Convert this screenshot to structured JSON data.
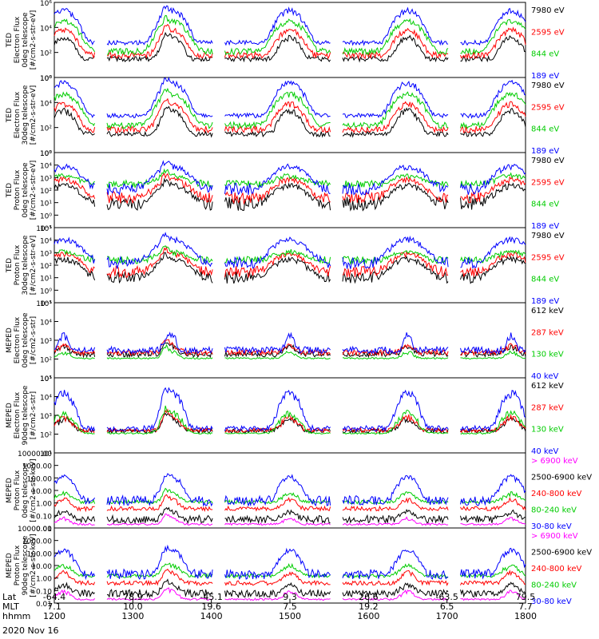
{
  "chart_data": [
    {
      "type": "line",
      "instrument": "TED",
      "ylabel": [
        "TED",
        "Electron Flux",
        "0deg telescope",
        "[#/cm2-s-str-eV]"
      ],
      "scale": "log",
      "ylim": [
        1,
        1000000
      ],
      "ticks": [
        "10⁰",
        "10²",
        "10⁴",
        "10⁶"
      ],
      "legend": [
        {
          "label": "7980 eV",
          "color": "#000000"
        },
        {
          "label": "2595 eV",
          "color": "#ff0000"
        },
        {
          "label": "844 eV",
          "color": "#00cc00"
        },
        {
          "label": "189 eV",
          "color": "#0000ff"
        }
      ],
      "series": [
        {
          "name": "7980 eV",
          "color": "#000000",
          "base": 30,
          "noise": 1.6,
          "peak": 2000,
          "peakWidth": 0.12
        },
        {
          "name": "2595 eV",
          "color": "#ff0000",
          "base": 60,
          "noise": 1.8,
          "peak": 8000,
          "peakWidth": 0.14
        },
        {
          "name": "844 eV",
          "color": "#00cc00",
          "base": 120,
          "noise": 1.8,
          "peak": 40000,
          "peakWidth": 0.16
        },
        {
          "name": "189 eV",
          "color": "#0000ff",
          "base": 600,
          "noise": 1.5,
          "peak": 300000,
          "peakWidth": 0.14
        }
      ]
    },
    {
      "type": "line",
      "instrument": "TED",
      "ylabel": [
        "TED",
        "Electron Flux",
        "30deg telescope",
        "[#/cm2-s-str-eV]"
      ],
      "scale": "log",
      "ylim": [
        1,
        1000000
      ],
      "ticks": [
        "10⁰",
        "10²",
        "10⁴",
        "10⁶"
      ],
      "legend": [
        {
          "label": "7980 eV",
          "color": "#000000"
        },
        {
          "label": "2595 eV",
          "color": "#ff0000"
        },
        {
          "label": "844 eV",
          "color": "#00cc00"
        },
        {
          "label": "189 eV",
          "color": "#0000ff"
        }
      ],
      "series": [
        {
          "name": "7980 eV",
          "color": "#000000",
          "base": 30,
          "noise": 1.6,
          "peak": 3000,
          "peakWidth": 0.12
        },
        {
          "name": "2595 eV",
          "color": "#ff0000",
          "base": 70,
          "noise": 1.8,
          "peak": 10000,
          "peakWidth": 0.14
        },
        {
          "name": "844 eV",
          "color": "#00cc00",
          "base": 150,
          "noise": 1.8,
          "peak": 60000,
          "peakWidth": 0.16
        },
        {
          "name": "189 eV",
          "color": "#0000ff",
          "base": 900,
          "noise": 1.5,
          "peak": 500000,
          "peakWidth": 0.14
        }
      ]
    },
    {
      "type": "line",
      "instrument": "TED",
      "ylabel": [
        "TED",
        "Proton Flux",
        "0deg telescope",
        "[#/cm2-s-str-eV]"
      ],
      "scale": "log",
      "ylim": [
        0.1,
        100000
      ],
      "ticks": [
        "10⁻¹",
        "10⁰",
        "10¹",
        "10²",
        "10³",
        "10⁴",
        "10⁵"
      ],
      "legend": [
        {
          "label": "7980 eV",
          "color": "#000000"
        },
        {
          "label": "2595 eV",
          "color": "#ff0000"
        },
        {
          "label": "844 eV",
          "color": "#00cc00"
        },
        {
          "label": "189 eV",
          "color": "#0000ff"
        }
      ],
      "series": [
        {
          "name": "7980 eV",
          "color": "#000000",
          "base": 8,
          "noise": 3.5,
          "peak": 300,
          "peakWidth": 0.2
        },
        {
          "name": "2595 eV",
          "color": "#ff0000",
          "base": 25,
          "noise": 3.0,
          "peak": 900,
          "peakWidth": 0.2
        },
        {
          "name": "844 eV",
          "color": "#00cc00",
          "base": 300,
          "noise": 2.0,
          "peak": 1500,
          "peakWidth": 0.22
        },
        {
          "name": "189 eV",
          "color": "#0000ff",
          "base": 120,
          "noise": 3.0,
          "peak": 10000,
          "peakWidth": 0.2
        }
      ]
    },
    {
      "type": "line",
      "instrument": "TED",
      "ylabel": [
        "TED",
        "Proton Flux",
        "30deg telescope",
        "[#/cm2-s-str-eV]"
      ],
      "scale": "log",
      "ylim": [
        0.1,
        100000
      ],
      "ticks": [
        "10⁻¹",
        "10⁰",
        "10¹",
        "10²",
        "10³",
        "10⁴",
        "10⁵"
      ],
      "legend": [
        {
          "label": "7980 eV",
          "color": "#000000"
        },
        {
          "label": "2595 eV",
          "color": "#ff0000"
        },
        {
          "label": "844 eV",
          "color": "#00cc00"
        },
        {
          "label": "189 eV",
          "color": "#0000ff"
        }
      ],
      "series": [
        {
          "name": "7980 eV",
          "color": "#000000",
          "base": 10,
          "noise": 3.0,
          "peak": 400,
          "peakWidth": 0.2
        },
        {
          "name": "2595 eV",
          "color": "#ff0000",
          "base": 30,
          "noise": 2.8,
          "peak": 1000,
          "peakWidth": 0.2
        },
        {
          "name": "844 eV",
          "color": "#00cc00",
          "base": 250,
          "noise": 2.0,
          "peak": 1200,
          "peakWidth": 0.22
        },
        {
          "name": "189 eV",
          "color": "#0000ff",
          "base": 150,
          "noise": 3.0,
          "peak": 15000,
          "peakWidth": 0.2
        }
      ]
    },
    {
      "type": "line",
      "instrument": "MEPED",
      "ylabel": [
        "MEPED",
        "Electron Flux",
        "0deg telescope",
        "[#/cm2-s-str]"
      ],
      "scale": "log",
      "ylim": [
        10,
        100000
      ],
      "ticks": [
        "10¹",
        "10²",
        "10³",
        "10⁴",
        "10⁵"
      ],
      "legend": [
        {
          "label": "612 keV",
          "color": "#000000"
        },
        {
          "label": "287 keV",
          "color": "#ff0000"
        },
        {
          "label": "130 keV",
          "color": "#00cc00"
        },
        {
          "label": "40 keV",
          "color": "#0000ff"
        }
      ],
      "series": [
        {
          "name": "612 keV",
          "color": "#000000",
          "base": 180,
          "noise": 1.4,
          "peak": 350,
          "peakWidth": 0.1
        },
        {
          "name": "287 keV",
          "color": "#ff0000",
          "base": 220,
          "noise": 1.4,
          "peak": 400,
          "peakWidth": 0.1
        },
        {
          "name": "130 keV",
          "color": "#00cc00",
          "base": 110,
          "noise": 1.1,
          "peak": 150,
          "peakWidth": 0.1
        },
        {
          "name": "40 keV",
          "color": "#0000ff",
          "base": 300,
          "noise": 1.5,
          "peak": 2000,
          "peakWidth": 0.06
        }
      ]
    },
    {
      "type": "line",
      "instrument": "MEPED",
      "ylabel": [
        "MEPED",
        "Electron Flux",
        "90deg telescope",
        "[#/cm2-s-str]"
      ],
      "scale": "log",
      "ylim": [
        10,
        100000
      ],
      "ticks": [
        "10¹",
        "10²",
        "10³",
        "10⁴",
        "10⁵"
      ],
      "legend": [
        {
          "label": "612 keV",
          "color": "#000000"
        },
        {
          "label": "287 keV",
          "color": "#ff0000"
        },
        {
          "label": "130 keV",
          "color": "#00cc00"
        },
        {
          "label": "40 keV",
          "color": "#0000ff"
        }
      ],
      "series": [
        {
          "name": "612 keV",
          "color": "#000000",
          "base": 150,
          "noise": 1.3,
          "peak": 600,
          "peakWidth": 0.12
        },
        {
          "name": "287 keV",
          "color": "#ff0000",
          "base": 160,
          "noise": 1.3,
          "peak": 800,
          "peakWidth": 0.12
        },
        {
          "name": "130 keV",
          "color": "#00cc00",
          "base": 110,
          "noise": 1.1,
          "peak": 1500,
          "peakWidth": 0.14
        },
        {
          "name": "40 keV",
          "color": "#0000ff",
          "base": 200,
          "noise": 1.4,
          "peak": 20000,
          "peakWidth": 0.12
        }
      ]
    },
    {
      "type": "line",
      "instrument": "MEPED",
      "ylabel": [
        "MEPED",
        "Proton Flux",
        "0deg telescope",
        "[#/cm2-s-str-keV]"
      ],
      "scale": "log",
      "ylim": [
        0.01,
        10000
      ],
      "ticks": [
        "0.01",
        "0.10",
        "1.00",
        "10.00",
        "100.00",
        "1000.00",
        "10000.00"
      ],
      "legend": [
        {
          "label": "> 6900 keV",
          "color": "#ff00ff"
        },
        {
          "label": "2500-6900 keV",
          "color": "#000000"
        },
        {
          "label": "240-800 keV",
          "color": "#ff0000"
        },
        {
          "label": "80-240 keV",
          "color": "#00cc00"
        },
        {
          "label": "30-80 keV",
          "color": "#0000ff"
        }
      ],
      "series": [
        {
          "name": "> 6900 keV",
          "color": "#ff00ff",
          "base": 0.02,
          "noise": 1.2,
          "peak": 0.05,
          "peakWidth": 0.1
        },
        {
          "name": "2500-6900 keV",
          "color": "#000000",
          "base": 0.05,
          "noise": 2.0,
          "peak": 0.2,
          "peakWidth": 0.1
        },
        {
          "name": "240-800 keV",
          "color": "#ff0000",
          "base": 0.35,
          "noise": 1.5,
          "peak": 2,
          "peakWidth": 0.1
        },
        {
          "name": "80-240 keV",
          "color": "#00cc00",
          "base": 1.2,
          "noise": 1.4,
          "peak": 6,
          "peakWidth": 0.12
        },
        {
          "name": "30-80 keV",
          "color": "#0000ff",
          "base": 1.5,
          "noise": 2.5,
          "peak": 150,
          "peakWidth": 0.12
        }
      ]
    },
    {
      "type": "line",
      "instrument": "MEPED",
      "ylabel": [
        "MEPED",
        "Proton Flux",
        "90deg telescope",
        "[#/cm2-s-str-keV]"
      ],
      "scale": "log",
      "ylim": [
        0.01,
        10000
      ],
      "ticks": [
        "0.01",
        "0.10",
        "1.00",
        "10.00",
        "100.00",
        "1000.00",
        "10000.00"
      ],
      "legend": [
        {
          "label": "> 6900 keV",
          "color": "#ff00ff"
        },
        {
          "label": "2500-6900 keV",
          "color": "#000000"
        },
        {
          "label": "240-800 keV",
          "color": "#ff0000"
        },
        {
          "label": "80-240 keV",
          "color": "#00cc00"
        },
        {
          "label": "30-80 keV",
          "color": "#0000ff"
        }
      ],
      "series": [
        {
          "name": "> 6900 keV",
          "color": "#ff00ff",
          "base": 0.02,
          "noise": 1.2,
          "peak": 0.08,
          "peakWidth": 0.1
        },
        {
          "name": "2500-6900 keV",
          "color": "#000000",
          "base": 0.06,
          "noise": 2.0,
          "peak": 0.3,
          "peakWidth": 0.1
        },
        {
          "name": "240-800 keV",
          "color": "#ff0000",
          "base": 0.4,
          "noise": 1.5,
          "peak": 3,
          "peakWidth": 0.1
        },
        {
          "name": "80-240 keV",
          "color": "#00cc00",
          "base": 1.5,
          "noise": 1.4,
          "peak": 10,
          "peakWidth": 0.12
        },
        {
          "name": "30-80 keV",
          "color": "#0000ff",
          "base": 2,
          "noise": 2.5,
          "peak": 200,
          "peakWidth": 0.12
        }
      ]
    }
  ],
  "x_axis": {
    "row_labels": [
      "Lat",
      "MLT",
      "hhmm"
    ],
    "ticks": [
      {
        "lat": "-64.4",
        "mlt": "7.1",
        "hhmm": "1200"
      },
      {
        "lat": "78.9",
        "mlt": "10.0",
        "hhmm": "1300"
      },
      {
        "lat": "-45.1",
        "mlt": "19.6",
        "hhmm": "1400"
      },
      {
        "lat": "9.3",
        "mlt": "7.5",
        "hhmm": "1500"
      },
      {
        "lat": "26.6",
        "mlt": "19.2",
        "hhmm": "1600"
      },
      {
        "lat": "-63.5",
        "mlt": "6.5",
        "hhmm": "1700"
      },
      {
        "lat": "79.5",
        "mlt": "7.7",
        "hhmm": "1800"
      }
    ],
    "date": "2020 Nov 16"
  },
  "passes": [
    0.02,
    0.25,
    0.5,
    0.75,
    0.97
  ],
  "gaps": [
    0.1,
    0.35,
    0.6,
    0.85
  ]
}
